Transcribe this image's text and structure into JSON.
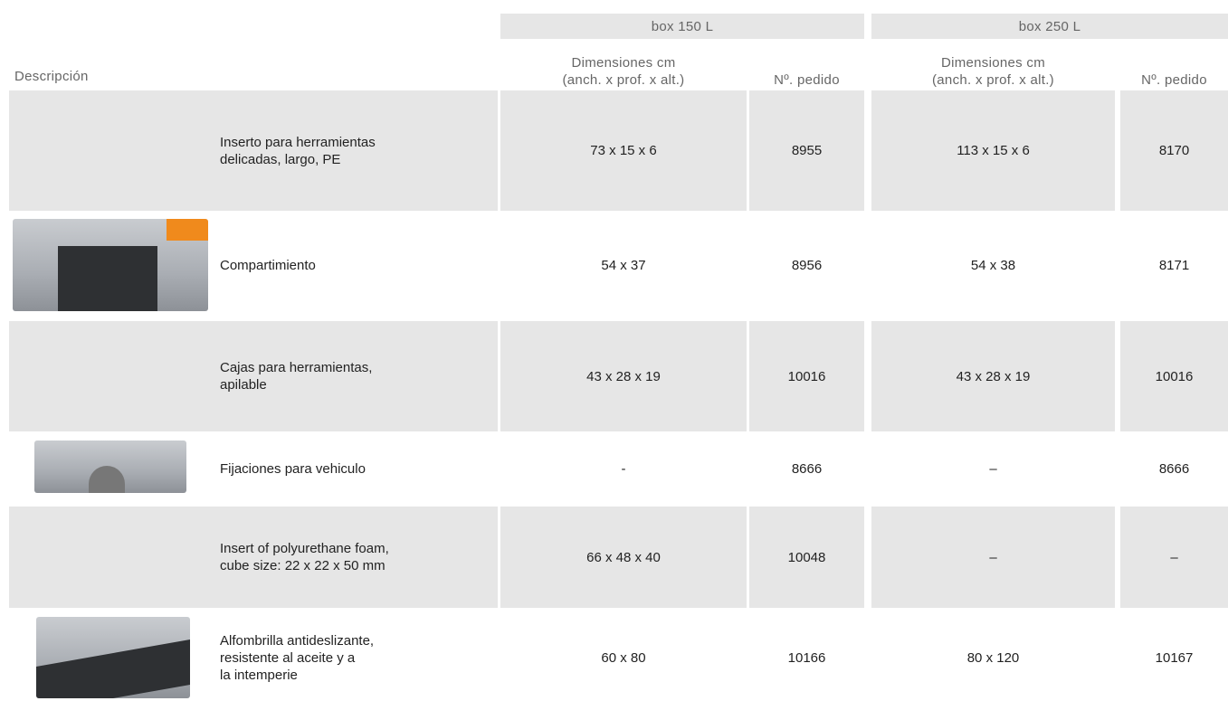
{
  "table": {
    "groups": [
      "box 150 L",
      "box 250 L"
    ],
    "columns": [
      [
        "Descripción"
      ],
      [
        "Dimensiones cm",
        "(anch. x prof. x alt.)"
      ],
      [
        "Nº. pedido"
      ],
      [
        "Dimensiones cm",
        "(anch. x prof. x alt.)"
      ],
      [
        "Nº. pedido"
      ]
    ],
    "rows": [
      [
        [
          "Inserto para herramientas",
          "delicadas, largo, PE"
        ],
        "73 x 15 x 6",
        "8955",
        "113 x 15 x 6",
        "8170"
      ],
      [
        [
          "Compartimiento"
        ],
        "54 x 37",
        "8956",
        "54 x 38",
        "8171"
      ],
      [
        [
          "Cajas para herramientas,",
          "apilable"
        ],
        "43 x 28 x 19",
        "10016",
        "43 x 28 x 19",
        "10016"
      ],
      [
        [
          "Fijaciones para vehiculo"
        ],
        "-",
        "8666",
        "–",
        "8666"
      ],
      [
        [
          "Insert of polyurethane foam,",
          "cube size: 22 x 22 x 50 mm"
        ],
        "66 x 48 x 40",
        "10048",
        "–",
        "–"
      ],
      [
        [
          "Alfombrilla antideslizante,",
          "resistente al aceite y a",
          "la intemperie"
        ],
        "60 x 80",
        "10166",
        "80 x 120",
        "10167"
      ]
    ]
  }
}
